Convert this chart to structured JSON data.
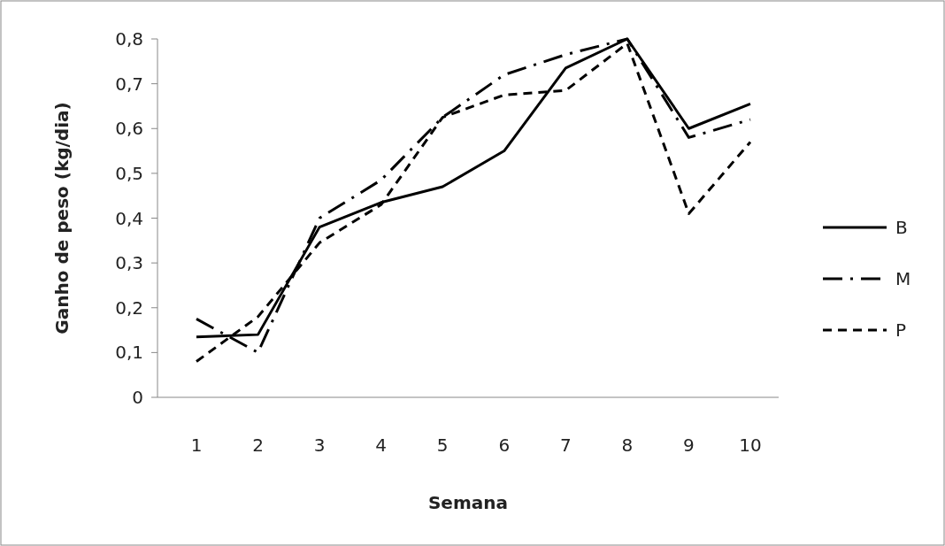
{
  "chart_data": {
    "type": "line",
    "ylabel": "Ganho de  peso (kg/dia)",
    "xlabel": "Semana",
    "categories": [
      "1",
      "2",
      "3",
      "4",
      "5",
      "6",
      "7",
      "8",
      "9",
      "10"
    ],
    "series": [
      {
        "name": "B",
        "color": "#000000",
        "line_style": "solid",
        "values": [
          0.135,
          0.14,
          0.38,
          0.435,
          0.47,
          0.55,
          0.735,
          0.8,
          0.6,
          0.655
        ]
      },
      {
        "name": "M",
        "color": "#000000",
        "line_style": "dashdot",
        "values": [
          0.175,
          0.1,
          0.4,
          0.485,
          0.625,
          0.72,
          0.765,
          0.8,
          0.58,
          0.62
        ]
      },
      {
        "name": "P",
        "color": "#000000",
        "line_style": "dashed",
        "values": [
          0.08,
          0.18,
          0.345,
          0.43,
          0.625,
          0.675,
          0.685,
          0.79,
          0.41,
          0.57
        ]
      }
    ],
    "ylim": [
      0,
      0.8
    ],
    "yticks": [
      0,
      {
        "value": 0.1,
        "label": "0,1"
      },
      {
        "value": 0.2,
        "label": "0,2"
      },
      {
        "value": 0.3,
        "label": "0,3"
      },
      {
        "value": 0.4,
        "label": "0,4"
      },
      {
        "value": 0.5,
        "label": "0,5"
      },
      {
        "value": 0.6,
        "label": "0,6"
      },
      {
        "value": 0.7,
        "label": "0,7"
      },
      {
        "value": 0.8,
        "label": "0,8"
      }
    ],
    "legend": "right",
    "grid": false,
    "marker": "none"
  }
}
